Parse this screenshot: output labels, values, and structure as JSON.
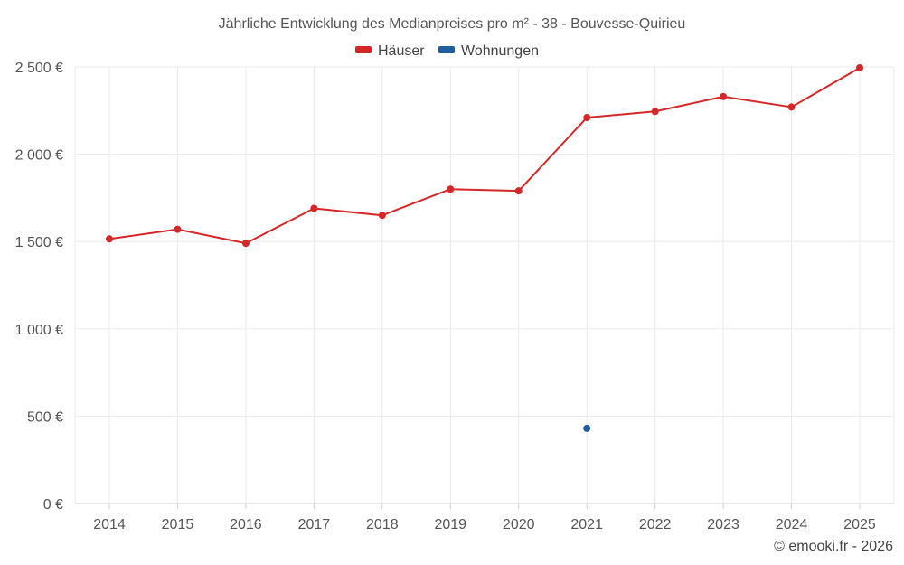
{
  "chart_data": {
    "type": "line",
    "title": "Jährliche Entwicklung des Medianpreises pro m² - 38 - Bouvesse-Quirieu",
    "categories": [
      "2014",
      "2015",
      "2016",
      "2017",
      "2018",
      "2019",
      "2020",
      "2021",
      "2022",
      "2023",
      "2024",
      "2025"
    ],
    "ylim": [
      0,
      2500
    ],
    "yticks": [
      0,
      500,
      1000,
      1500,
      2000,
      2500
    ],
    "ytick_labels": [
      "0 €",
      "500 €",
      "1 000 €",
      "1 500 €",
      "2 000 €",
      "2 500 €"
    ],
    "grid": true,
    "legend_position": "top-center",
    "series": [
      {
        "name": "Häuser",
        "color": "#d62728",
        "values": [
          1515,
          1570,
          1490,
          1690,
          1650,
          1800,
          1790,
          2210,
          2245,
          2330,
          2270,
          2495
        ]
      },
      {
        "name": "Wohnungen",
        "color": "#1f5fa0",
        "values": [
          null,
          null,
          null,
          null,
          null,
          null,
          null,
          430,
          null,
          null,
          null,
          null
        ]
      }
    ]
  },
  "credit": "© emooki.fr - 2026"
}
